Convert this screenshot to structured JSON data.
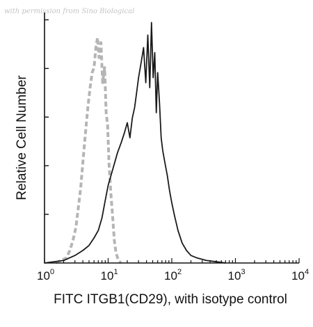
{
  "watermark": "with permission from Sino Biological",
  "chart_data": {
    "type": "area",
    "title": "",
    "xlabel": "FITC ITGB1(CD29), with isotype control",
    "ylabel": "Relative Cell Number",
    "xscale": "log",
    "xlim": [
      1,
      10000
    ],
    "ylim": [
      0,
      100
    ],
    "grid": false,
    "legend": "none",
    "x_ticks": [
      {
        "base": "10",
        "exp": "0"
      },
      {
        "base": "10",
        "exp": "1"
      },
      {
        "base": "10",
        "exp": "2"
      },
      {
        "base": "10",
        "exp": "3"
      },
      {
        "base": "10",
        "exp": "4"
      }
    ],
    "series": [
      {
        "style": "dashed",
        "color": "#b5b5b5",
        "points": [
          [
            1.5,
            0
          ],
          [
            1.8,
            1
          ],
          [
            2.2,
            2
          ],
          [
            2.5,
            5
          ],
          [
            2.8,
            9
          ],
          [
            3.1,
            14
          ],
          [
            3.4,
            22
          ],
          [
            3.7,
            30
          ],
          [
            4.0,
            40
          ],
          [
            4.4,
            52
          ],
          [
            4.8,
            62
          ],
          [
            5.2,
            70
          ],
          [
            5.6,
            76
          ],
          [
            6.0,
            78
          ],
          [
            6.4,
            86
          ],
          [
            6.8,
            90
          ],
          [
            7.2,
            82
          ],
          [
            7.7,
            88
          ],
          [
            8.2,
            72
          ],
          [
            8.8,
            78
          ],
          [
            9.3,
            60
          ],
          [
            9.8,
            55
          ],
          [
            10.3,
            40
          ],
          [
            11.0,
            28
          ],
          [
            11.8,
            18
          ],
          [
            12.5,
            9
          ],
          [
            13.3,
            4
          ],
          [
            14.5,
            1
          ],
          [
            16,
            0
          ]
        ]
      },
      {
        "style": "solid",
        "color": "#1a1a1a",
        "points": [
          [
            1,
            0
          ],
          [
            2,
            1
          ],
          [
            3,
            3
          ],
          [
            4,
            5
          ],
          [
            5,
            7
          ],
          [
            6,
            10
          ],
          [
            7,
            13
          ],
          [
            8,
            18
          ],
          [
            9,
            25
          ],
          [
            10,
            31
          ],
          [
            12,
            38
          ],
          [
            14,
            44
          ],
          [
            16,
            48
          ],
          [
            18,
            52
          ],
          [
            20,
            56
          ],
          [
            22,
            50
          ],
          [
            24,
            58
          ],
          [
            26,
            62
          ],
          [
            28,
            68
          ],
          [
            30,
            74
          ],
          [
            33,
            80
          ],
          [
            36,
            86
          ],
          [
            39,
            72
          ],
          [
            42,
            91
          ],
          [
            45,
            70
          ],
          [
            48,
            96
          ],
          [
            51,
            74
          ],
          [
            54,
            84
          ],
          [
            57,
            60
          ],
          [
            60,
            76
          ],
          [
            64,
            64
          ],
          [
            68,
            50
          ],
          [
            72,
            45
          ],
          [
            78,
            40
          ],
          [
            85,
            35
          ],
          [
            92,
            29
          ],
          [
            100,
            24
          ],
          [
            110,
            19
          ],
          [
            125,
            13
          ],
          [
            145,
            8
          ],
          [
            170,
            5
          ],
          [
            200,
            3
          ],
          [
            250,
            2
          ],
          [
            350,
            1
          ],
          [
            500,
            0.5
          ],
          [
            700,
            0
          ]
        ]
      }
    ]
  }
}
